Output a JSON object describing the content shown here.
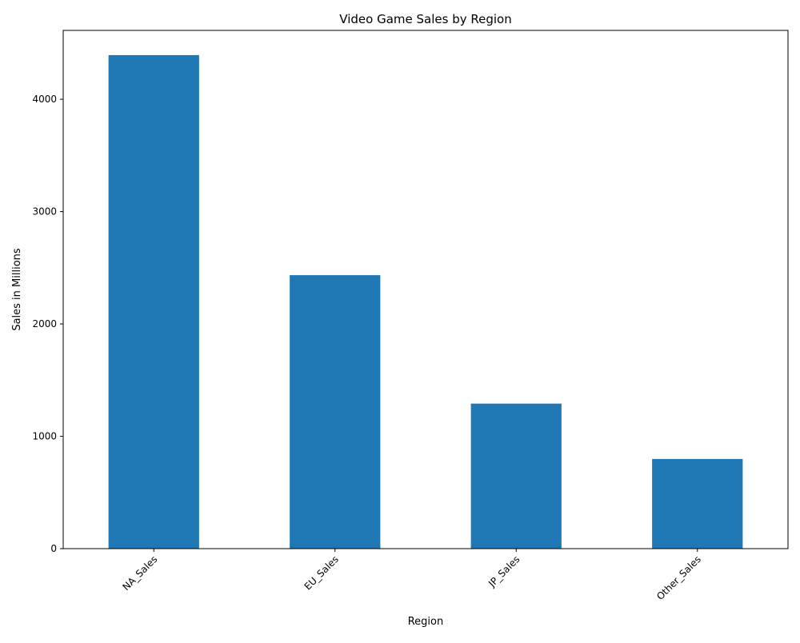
{
  "chart_data": {
    "type": "bar",
    "title": "Video Game Sales by Region",
    "xlabel": "Region",
    "ylabel": "Sales in Millions",
    "categories": [
      "NA_Sales",
      "EU_Sales",
      "JP_Sales",
      "Other_Sales"
    ],
    "values": [
      4393,
      2434,
      1291,
      798
    ],
    "ylim": [
      0,
      4613
    ],
    "yticks": [
      0,
      1000,
      2000,
      3000,
      4000
    ],
    "ytick_labels": [
      "0",
      "1000",
      "2000",
      "3000",
      "4000"
    ],
    "grid": false,
    "legend": "none",
    "bar_color": "#1f77b4"
  }
}
